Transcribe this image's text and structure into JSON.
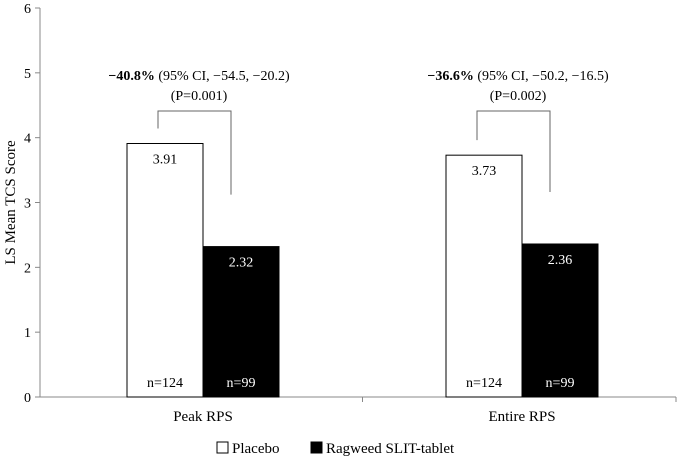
{
  "chart_data": {
    "type": "bar",
    "ylabel": "LS Mean TCS Score",
    "xlabel": "",
    "ylim": [
      0,
      6
    ],
    "yticks": [
      "0",
      "1",
      "2",
      "3",
      "4",
      "5",
      "6"
    ],
    "grid": false,
    "legend_position": "bottom",
    "categories": [
      "Peak RPS",
      "Entire RPS"
    ],
    "series": [
      {
        "name": "Placebo",
        "fill": "#ffffff",
        "values": [
          3.91,
          3.73
        ],
        "value_labels": [
          "3.91",
          "3.73"
        ],
        "n_labels": [
          "n=124",
          "n=124"
        ]
      },
      {
        "name": "Ragweed SLIT-tablet",
        "fill": "#000000",
        "values": [
          2.32,
          2.36
        ],
        "value_labels": [
          "2.32",
          "2.36"
        ],
        "n_labels": [
          "n=99",
          "n=99"
        ]
      }
    ],
    "annotations": [
      {
        "bold": "−40.8%",
        "rest": " (95% CI, −54.5, −20.2)",
        "line2": "(P=0.001)"
      },
      {
        "bold": "−36.6%",
        "rest": " (95% CI, −50.2, −16.5)",
        "line2": "(P=0.002)"
      }
    ],
    "legend": [
      "Placebo",
      "Ragweed SLIT-tablet"
    ]
  }
}
